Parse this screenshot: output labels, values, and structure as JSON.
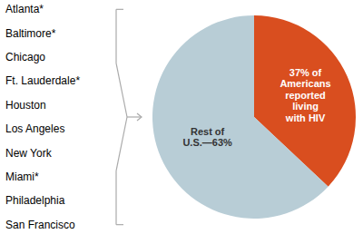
{
  "chart_data": {
    "type": "pie",
    "values": [
      37,
      63
    ],
    "value_labels": [
      "37% of\nAmericans\nreported\nliving\nwith HIV",
      "Rest of\nU.S.—63%"
    ],
    "colors": [
      "#D94E1F",
      "#B8CDD6"
    ],
    "data_labels": true,
    "annotations": [
      "Atlanta*",
      "Baltimore*",
      "Chicago",
      "Ft. Lauderdale*",
      "Houston",
      "Los Angeles",
      "New York",
      "Miami*",
      "Philadelphia",
      "San Francisco"
    ]
  }
}
